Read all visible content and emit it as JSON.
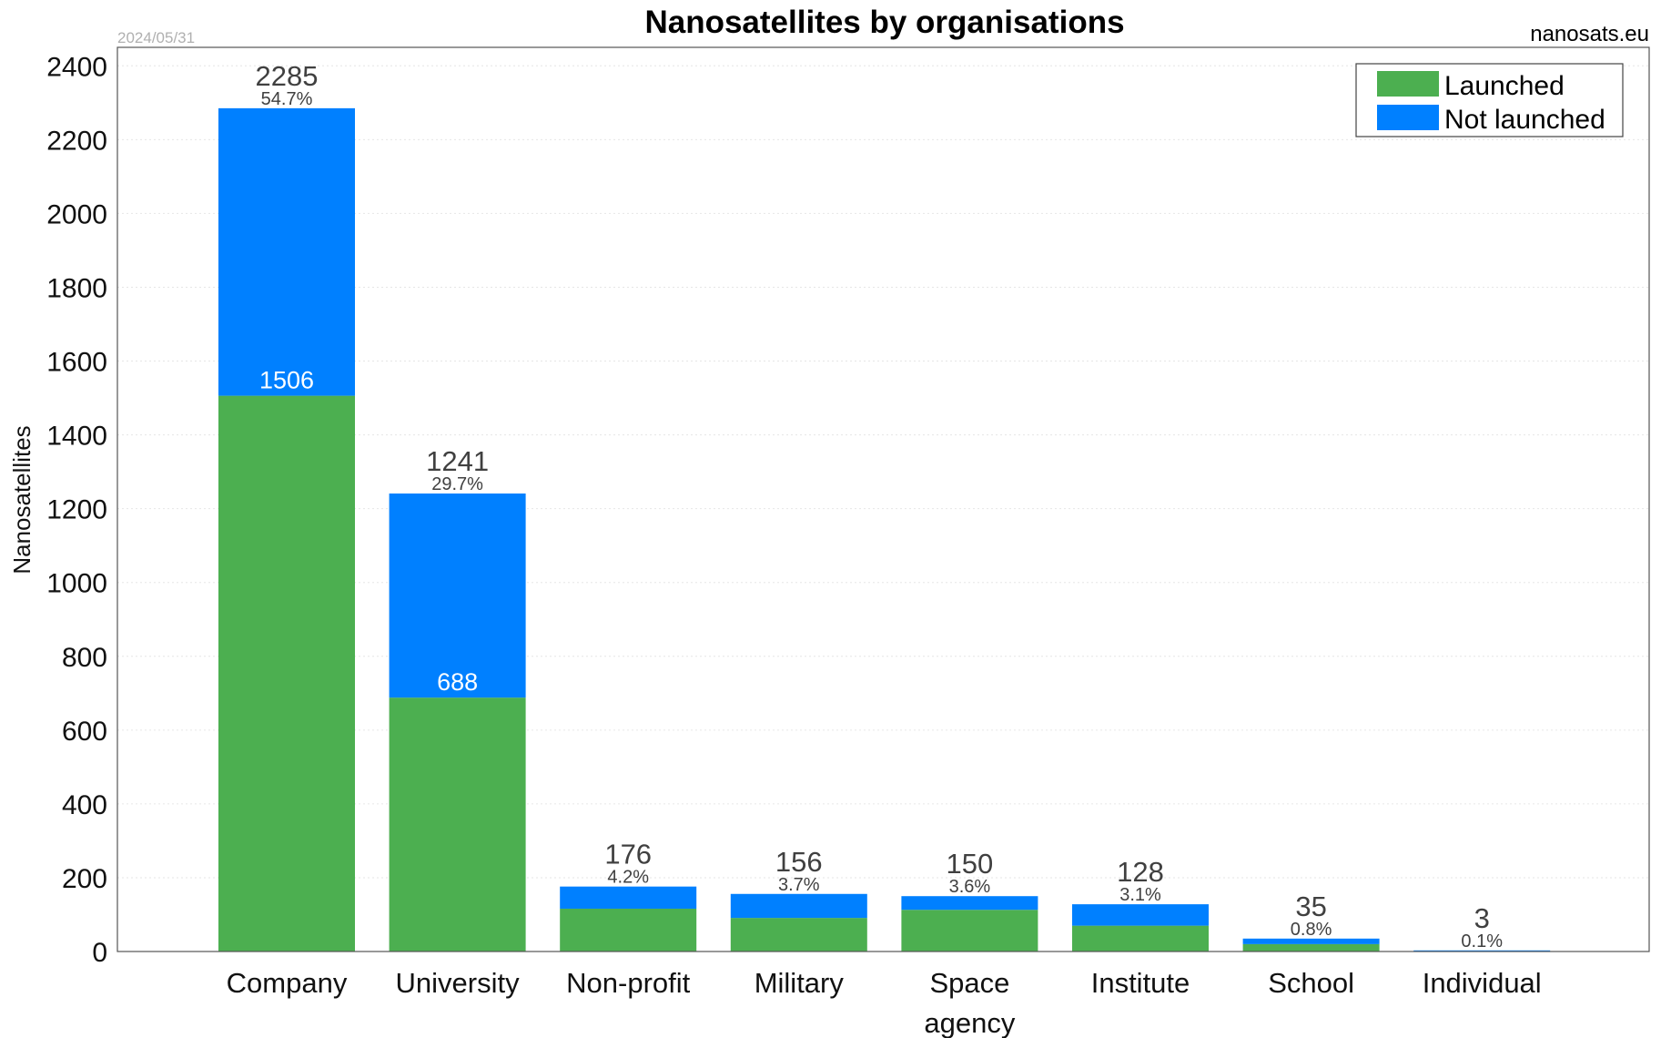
{
  "chart_data": {
    "type": "bar",
    "stacked": true,
    "title": "Nanosatellites by organisations",
    "date": "2024/05/31",
    "source": "nanosats.eu",
    "ylabel": "Nanosatellites",
    "xlabel": "",
    "ylim": [
      0,
      2450
    ],
    "yticks": [
      0,
      200,
      400,
      600,
      800,
      1000,
      1200,
      1400,
      1600,
      1800,
      2000,
      2200,
      2400
    ],
    "grid": true,
    "legend_position": "top-right",
    "categories": [
      [
        "Company"
      ],
      [
        "University"
      ],
      [
        "Non-profit"
      ],
      [
        "Military"
      ],
      [
        "Space",
        "agency"
      ],
      [
        "Institute"
      ],
      [
        "School"
      ],
      [
        "Individual"
      ]
    ],
    "totals": [
      2285,
      1241,
      176,
      156,
      150,
      128,
      35,
      3
    ],
    "percentages": [
      "54.7%",
      "29.7%",
      "4.2%",
      "3.7%",
      "3.6%",
      "3.1%",
      "0.8%",
      "0.1%"
    ],
    "inner_labels": [
      "1506",
      "688",
      "",
      "",
      "",
      "",
      "",
      ""
    ],
    "series": [
      {
        "name": "Launched",
        "color": "#4caf50",
        "values": [
          1506,
          688,
          116,
          91,
          113,
          70,
          20,
          0
        ]
      },
      {
        "name": "Not launched",
        "color": "#0080ff",
        "values": [
          779,
          553,
          60,
          65,
          37,
          58,
          15,
          3
        ]
      }
    ]
  }
}
